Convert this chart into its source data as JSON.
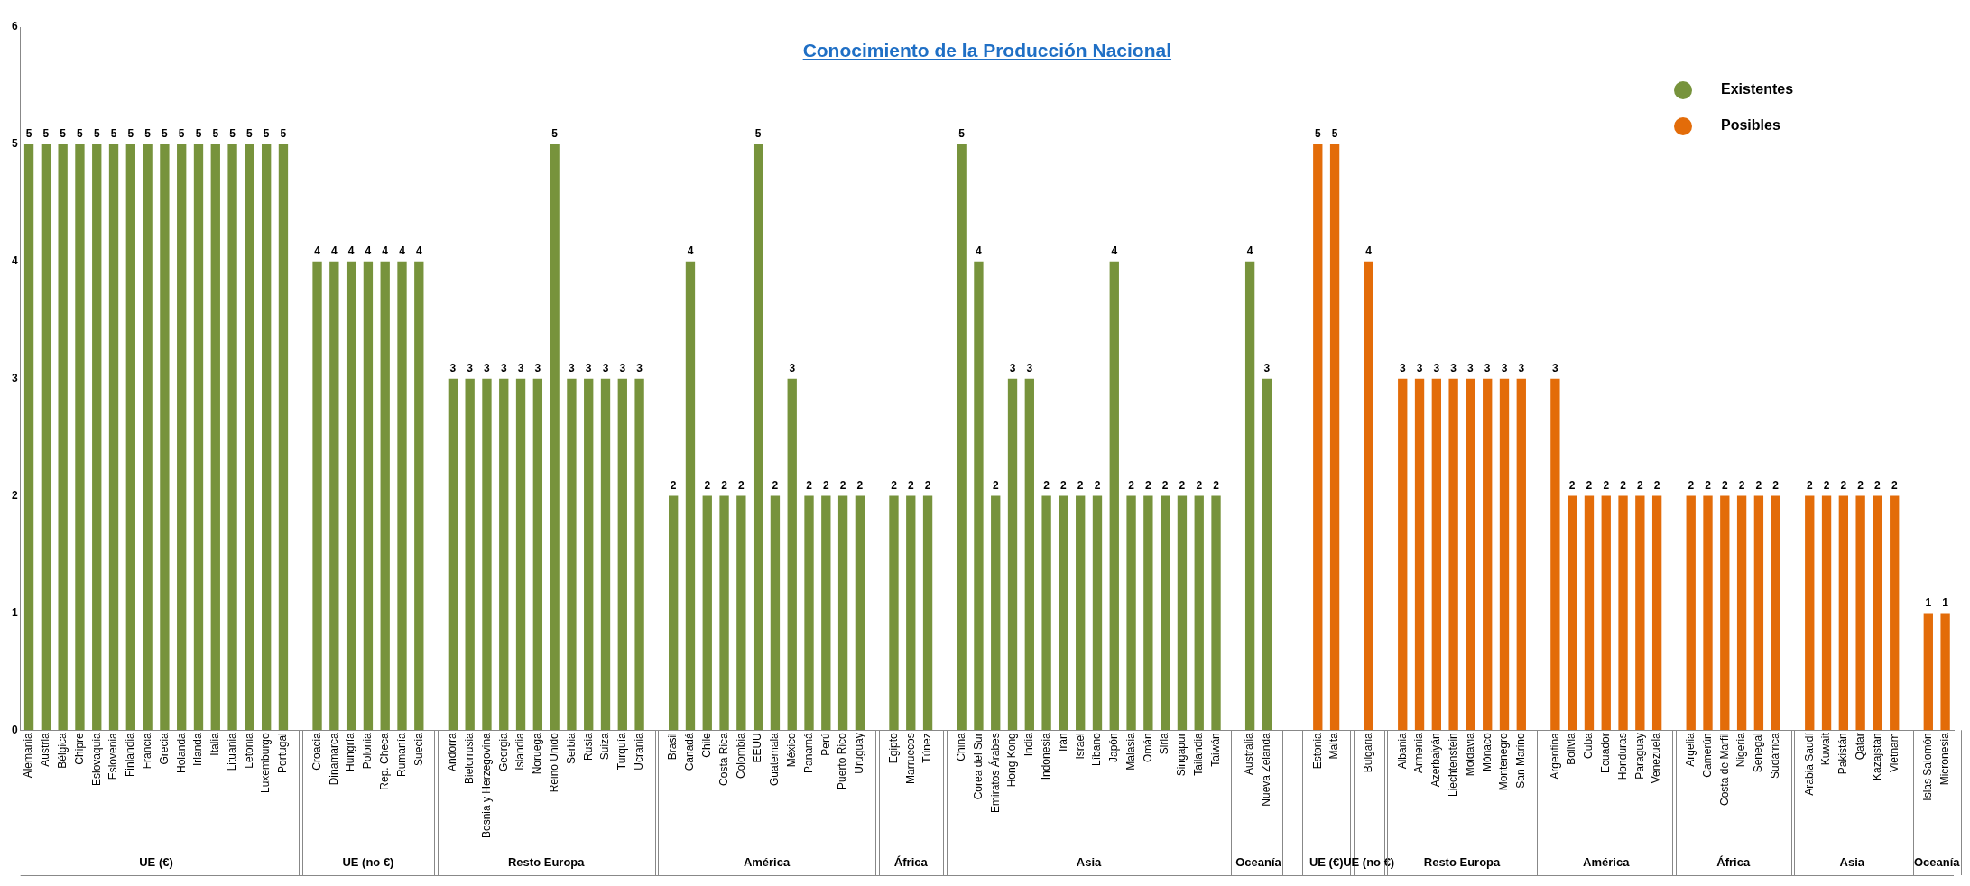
{
  "chart_data": {
    "type": "bar",
    "title": "Conocimiento de la Producción Nacional",
    "categories": [
      "Alemania",
      "Austria",
      "Bélgica",
      "Chipre",
      "Eslovaquia",
      "Eslovenia",
      "Finlandia",
      "Francia",
      "Grecia",
      "Holanda",
      "Irlanda",
      "Italia",
      "Lituania",
      "Letonia",
      "Luxemburgo",
      "Portugal",
      null,
      "Croacia",
      "Dinamarca",
      "Hungría",
      "Polonia",
      "Rep. Checa",
      "Rumanía",
      "Suecia",
      null,
      "Andorra",
      "Bielorrusia",
      "Bosnia y Herzegovina",
      "Georgia",
      "Islandia",
      "Noruega",
      "Reino Unido",
      "Serbia",
      "Rusia",
      "Suiza",
      "Turquía",
      "Ucrania",
      null,
      "Brasil",
      "Canadá",
      "Chile",
      "Costa Rica",
      "Colombia",
      "EEUU",
      "Guatemala",
      "México",
      "Panamá",
      "Perú",
      "Puerto Rico",
      "Uruguay",
      null,
      "Egipto",
      "Marruecos",
      "Túnez",
      null,
      "China",
      "Corea del Sur",
      "Emiratos Árabes",
      "Hong Kong",
      "India",
      "Indonesia",
      "Irán",
      "Israel",
      "Líbano",
      "Japón",
      "Malasia",
      "Omán",
      "Siria",
      "Singapur",
      "Tailandia",
      "Taiwán",
      null,
      "Australia",
      "Nueva Zelanda",
      null,
      null,
      "Estonia",
      "Malta",
      null,
      "Bulgaria",
      null,
      "Albania",
      "Armenia",
      "Azerbaiyán",
      "Liechtenstein",
      "Moldavia",
      "Mónaco",
      "Montenegro",
      "San Marino",
      null,
      "Argentina",
      "Bolivia",
      "Cuba",
      "Ecuador",
      "Honduras",
      "Paraguay",
      "Venezuela",
      null,
      "Argelia",
      "Camerún",
      "Costa de Marfil",
      "Nigeria",
      "Senegal",
      "Sudáfrica",
      null,
      "Arabia Saudí",
      "Kuwait",
      "Pakistán",
      "Qatar",
      "Kazajstán",
      "Vietnam",
      null,
      "Islas Salomón",
      "Micronesia"
    ],
    "series": [
      {
        "name": "Existentes",
        "color": "#77933c",
        "values": [
          5,
          5,
          5,
          5,
          5,
          5,
          5,
          5,
          5,
          5,
          5,
          5,
          5,
          5,
          5,
          5,
          null,
          4,
          4,
          4,
          4,
          4,
          4,
          4,
          null,
          3,
          3,
          3,
          3,
          3,
          3,
          5,
          3,
          3,
          3,
          3,
          3,
          null,
          2,
          4,
          2,
          2,
          2,
          5,
          2,
          3,
          2,
          2,
          2,
          2,
          null,
          2,
          2,
          2,
          null,
          5,
          4,
          2,
          3,
          3,
          2,
          2,
          2,
          2,
          4,
          2,
          2,
          2,
          2,
          2,
          2,
          null,
          4,
          3,
          null,
          null,
          null,
          null,
          null,
          null,
          null,
          null,
          null,
          null,
          null,
          null,
          null,
          null,
          null,
          null,
          null,
          null,
          null,
          null,
          null,
          null,
          null,
          null,
          null,
          null,
          null,
          null,
          null,
          null,
          null,
          null,
          null,
          null,
          null,
          null,
          null,
          null,
          null,
          null
        ]
      },
      {
        "name": "Posibles",
        "color": "#e36c09",
        "values": [
          null,
          null,
          null,
          null,
          null,
          null,
          null,
          null,
          null,
          null,
          null,
          null,
          null,
          null,
          null,
          null,
          null,
          null,
          null,
          null,
          null,
          null,
          null,
          null,
          null,
          null,
          null,
          null,
          null,
          null,
          null,
          null,
          null,
          null,
          null,
          null,
          null,
          null,
          null,
          null,
          null,
          null,
          null,
          null,
          null,
          null,
          null,
          null,
          null,
          null,
          null,
          null,
          null,
          null,
          null,
          null,
          null,
          null,
          null,
          null,
          null,
          null,
          null,
          null,
          null,
          null,
          null,
          null,
          null,
          null,
          null,
          null,
          null,
          null,
          null,
          null,
          5,
          5,
          null,
          4,
          null,
          3,
          3,
          3,
          3,
          3,
          3,
          3,
          3,
          null,
          3,
          2,
          2,
          2,
          2,
          2,
          2,
          null,
          2,
          2,
          2,
          2,
          2,
          2,
          null,
          2,
          2,
          2,
          2,
          2,
          2,
          null,
          1,
          1
        ]
      }
    ],
    "annotations": [
      "UE (€)",
      "UE (no €)",
      "Resto Europa",
      "América",
      "África",
      "Asia",
      "Oceanía",
      "UE (€)",
      "UE (no €)",
      "Resto Europa",
      "América",
      "África",
      "Asia",
      "Oceanía"
    ],
    "ylim": [
      0,
      6
    ],
    "yticks": [
      0,
      1,
      2,
      3,
      4,
      5,
      6
    ],
    "grid": false,
    "legend": "top right",
    "data_labels": true
  }
}
